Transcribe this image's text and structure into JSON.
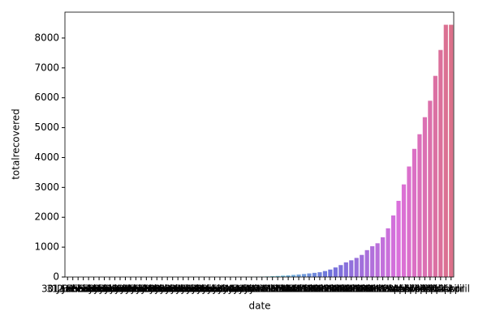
{
  "chart_data": {
    "type": "bar",
    "x_label": "date",
    "y_label": "totalrecovered",
    "categories": [
      "30 January",
      "31 January",
      "1 February",
      "2 February",
      "3 February",
      "4 February",
      "5 February",
      "6 February",
      "7 February",
      "8 February",
      "9 February",
      "10 February",
      "11 February",
      "12 February",
      "13 February",
      "14 February",
      "15 February",
      "16 February",
      "17 February",
      "18 February",
      "19 February",
      "20 February",
      "21 February",
      "22 February",
      "23 February",
      "24 February",
      "25 February",
      "26 February",
      "27 February",
      "28 February",
      "29 February",
      "1 March",
      "2 March",
      "3 March",
      "4 March",
      "5 March",
      "6 March",
      "7 March",
      "8 March",
      "9 March",
      "10 March",
      "11 March",
      "12 March",
      "13 March",
      "14 March",
      "15 March",
      "16 March",
      "17 March",
      "18 March",
      "19 March",
      "20 March",
      "21 March",
      "22 March",
      "23 March",
      "24 March",
      "25 March",
      "26 March",
      "27 March",
      "28 March",
      "29 March",
      "30 March",
      "31 March",
      "1 April",
      "2 April",
      "3 April",
      "4 April",
      "5 April",
      "6 April",
      "7 April",
      "8 April",
      "9 April",
      "10 April",
      "11 April",
      "12 April"
    ],
    "values": [
      0,
      0,
      0,
      0,
      0,
      0,
      0,
      0,
      0,
      0,
      0,
      0,
      0,
      0,
      0,
      0,
      0,
      0,
      0,
      0,
      0,
      0,
      0,
      0,
      0,
      0,
      0,
      0,
      0,
      0,
      0,
      0,
      0,
      0,
      3,
      5,
      8,
      12,
      18,
      25,
      35,
      45,
      55,
      70,
      85,
      100,
      120,
      140,
      160,
      200,
      250,
      320,
      400,
      490,
      560,
      640,
      740,
      900,
      1030,
      1130,
      1330,
      1630,
      2060,
      2550,
      3100,
      3700,
      4290,
      4780,
      5350,
      5900,
      6733,
      7600,
      8444,
      8444
    ],
    "palette": "husl",
    "ylim": [
      0,
      8866
    ],
    "yticks": [
      0,
      1000,
      2000,
      3000,
      4000,
      5000,
      6000,
      7000,
      8000
    ]
  }
}
